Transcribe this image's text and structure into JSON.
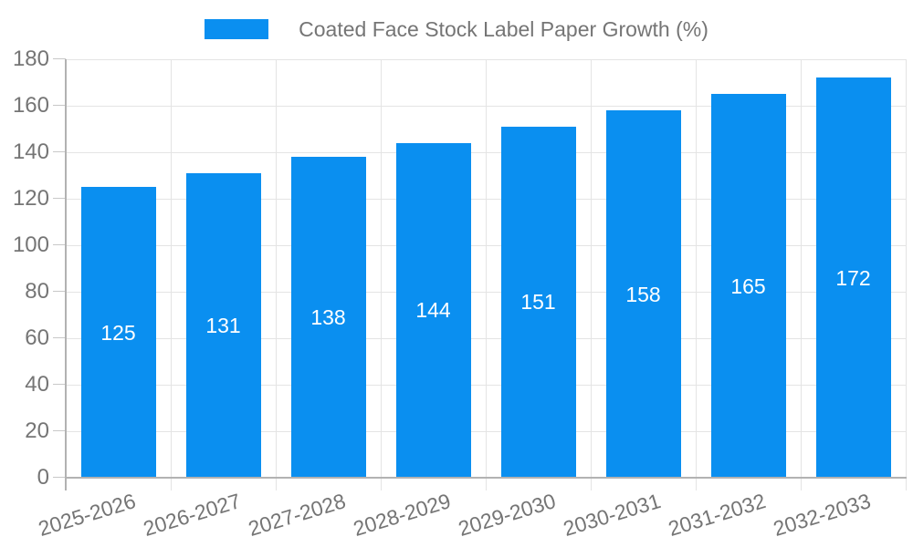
{
  "chart_data": {
    "type": "bar",
    "title": "Coated Face Stock Label Paper Growth (%)",
    "categories": [
      "2025-2026",
      "2026-2027",
      "2027-2028",
      "2028-2029",
      "2029-2030",
      "2030-2031",
      "2031-2032",
      "2032-2033"
    ],
    "values": [
      125,
      131,
      138,
      144,
      151,
      158,
      165,
      172
    ],
    "series": [
      {
        "name": "Coated Face Stock Label Paper Growth (%)",
        "values": [
          125,
          131,
          138,
          144,
          151,
          158,
          165,
          172
        ]
      }
    ],
    "xlabel": "",
    "ylabel": "",
    "ylim": [
      0,
      180
    ],
    "ytick_step": 20,
    "yticks": [
      0,
      20,
      40,
      60,
      80,
      100,
      120,
      140,
      160,
      180
    ],
    "grid": true,
    "legend_position": "top",
    "x_tick_rotation_deg": -17,
    "colors": {
      "bar": "#0a8ff0",
      "value_label": "#ffffff",
      "axis_text": "#757575",
      "gridline": "#e4e4e4",
      "axis_line": "#b2b2b2",
      "tick": "#c8c8c8",
      "background": "#ffffff"
    }
  }
}
